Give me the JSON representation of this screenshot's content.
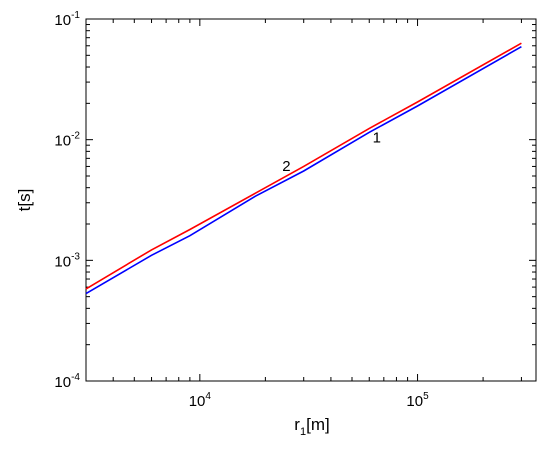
{
  "chart_data": {
    "type": "line",
    "title": "",
    "xlabel": {
      "main": "r",
      "sub": "1",
      "unit": "[m]"
    },
    "ylabel": "t[s]",
    "xscale": "log",
    "yscale": "log",
    "xlim": [
      3000,
      350000
    ],
    "ylim": [
      0.0001,
      0.1
    ],
    "grid": false,
    "legend": "none",
    "x_tick_labels": [
      {
        "value": 10000,
        "base": "10",
        "exp": "4"
      },
      {
        "value": 100000,
        "base": "10",
        "exp": "5"
      }
    ],
    "y_tick_labels": [
      {
        "value": 0.0001,
        "base": "10",
        "exp": "-4"
      },
      {
        "value": 0.001,
        "base": "10",
        "exp": "-3"
      },
      {
        "value": 0.01,
        "base": "10",
        "exp": "-2"
      },
      {
        "value": 0.1,
        "base": "10",
        "exp": "-1"
      }
    ],
    "series": [
      {
        "name": "1",
        "color": "#0000ff",
        "x": [
          3000,
          6000,
          9000,
          18000,
          30000,
          60000,
          100000,
          300000
        ],
        "y": [
          0.00053,
          0.0011,
          0.0016,
          0.0034,
          0.0055,
          0.0115,
          0.019,
          0.059
        ]
      },
      {
        "name": "2",
        "color": "#ff0000",
        "x": [
          3000,
          6000,
          9000,
          18000,
          30000,
          60000,
          100000,
          300000
        ],
        "y": [
          0.00058,
          0.00122,
          0.0018,
          0.0036,
          0.006,
          0.0124,
          0.0205,
          0.063
        ]
      }
    ],
    "curve_labels": [
      {
        "text": "1",
        "x": 65000,
        "y": 0.0095
      },
      {
        "text": "2",
        "x": 25000,
        "y": 0.0055
      }
    ],
    "colors": {
      "axis": "#000000",
      "background": "#ffffff"
    }
  }
}
